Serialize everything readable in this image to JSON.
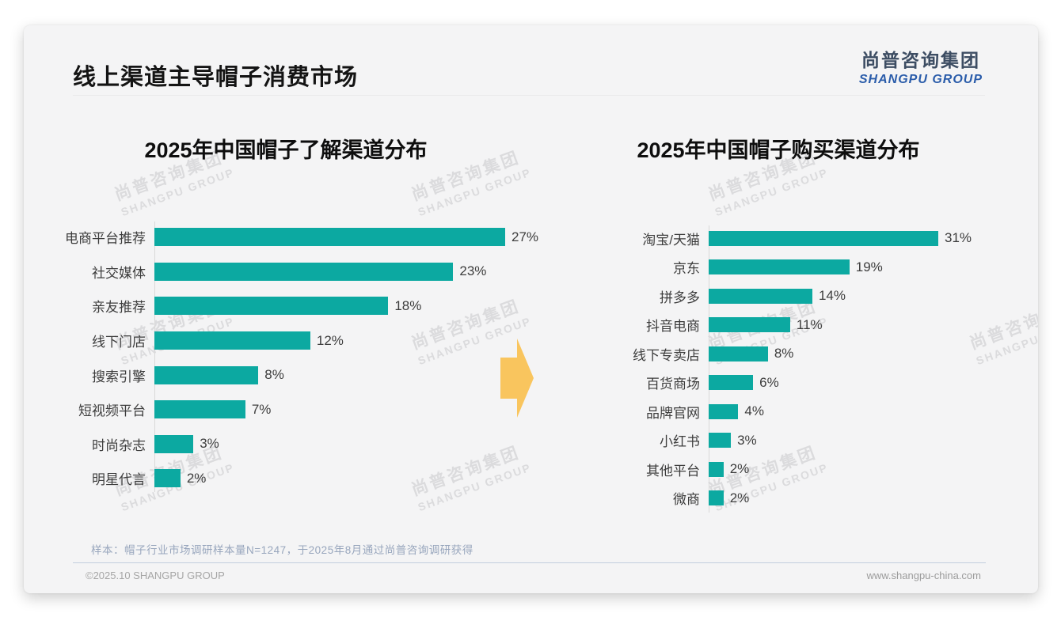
{
  "page": {
    "title": "线上渠道主导帽子消费市场"
  },
  "logo": {
    "cn": "尚普咨询集团",
    "en": "SHANGPU GROUP"
  },
  "watermark": {
    "line1": "尚普咨询集团",
    "line2": "SHANGPU GROUP"
  },
  "chart_data": [
    {
      "type": "bar",
      "orientation": "horizontal",
      "title": "2025年中国帽子了解渠道分布",
      "categories": [
        "电商平台推荐",
        "社交媒体",
        "亲友推荐",
        "线下门店",
        "搜索引擎",
        "短视频平台",
        "时尚杂志",
        "明星代言"
      ],
      "values": [
        27,
        23,
        18,
        12,
        8,
        7,
        3,
        2
      ],
      "unit": "%",
      "xlim": [
        0,
        27
      ],
      "value_labels": true,
      "grid": false,
      "legend": false
    },
    {
      "type": "bar",
      "orientation": "horizontal",
      "title": "2025年中国帽子购买渠道分布",
      "categories": [
        "淘宝/天猫",
        "京东",
        "拼多多",
        "抖音电商",
        "线下专卖店",
        "百货商场",
        "品牌官网",
        "小红书",
        "其他平台",
        "微商"
      ],
      "values": [
        31,
        19,
        14,
        11,
        8,
        6,
        4,
        3,
        2,
        2
      ],
      "unit": "%",
      "xlim": [
        0,
        31
      ],
      "value_labels": true,
      "grid": false,
      "legend": false
    }
  ],
  "colors": {
    "bar": "#0ca9a1",
    "accent_arrow": "#f9c55e",
    "logo_cn": "#3d4d63",
    "logo_en": "#2a5caa"
  },
  "footer": {
    "sample_note": "样本：帽子行业市场调研样本量N=1247，于2025年8月通过尚普咨询调研获得",
    "copyright": "©2025.10 SHANGPU GROUP",
    "website": "www.shangpu-china.com"
  }
}
